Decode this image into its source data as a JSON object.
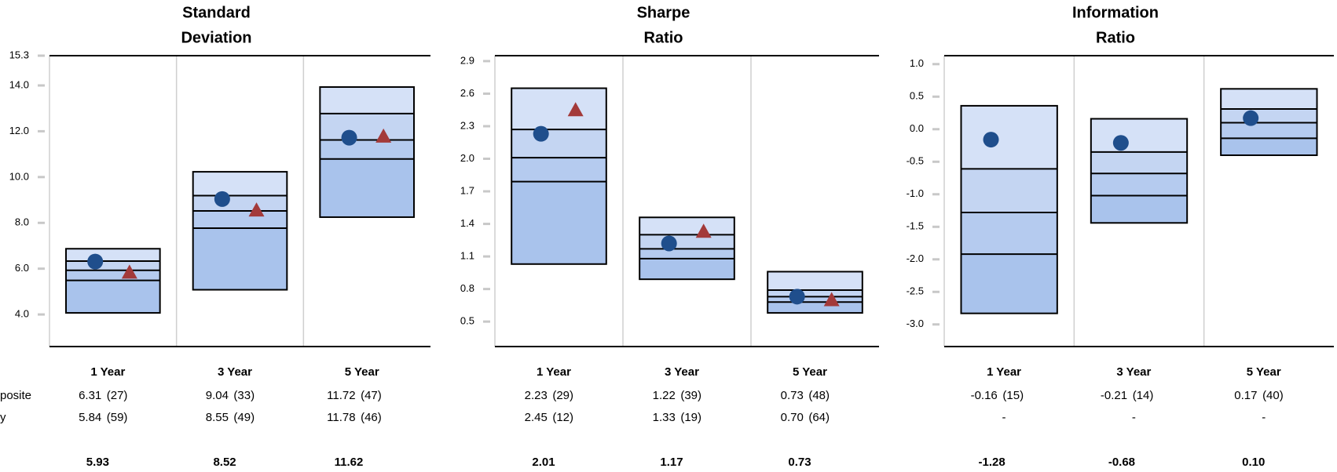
{
  "row_labels": [
    "posite",
    "y"
  ],
  "band_colors": [
    "#d5e1f7",
    "#c4d5f2",
    "#b5cbef",
    "#a9c3ec"
  ],
  "chart_data": [
    {
      "type": "range",
      "title": [
        "Standard",
        "Deviation"
      ],
      "categories": [
        "1 Year",
        "3 Year",
        "5 Year"
      ],
      "ylim": [
        2.6,
        15.3
      ],
      "yticks": [
        {
          "value": 4,
          "label": "4.0"
        },
        {
          "value": 6,
          "label": "6.0"
        },
        {
          "value": 8,
          "label": "8.0"
        },
        {
          "value": 10,
          "label": "10.0"
        },
        {
          "value": 12,
          "label": "12.0"
        },
        {
          "value": 14,
          "label": "14.0"
        },
        15.3
      ],
      "percentiles": [
        [
          4.07,
          5.49,
          5.93,
          6.33,
          6.87
        ],
        [
          5.08,
          7.77,
          8.52,
          9.19,
          10.23
        ],
        [
          8.25,
          10.79,
          11.62,
          12.77,
          13.93
        ]
      ],
      "median_labels": [
        "5.93",
        "8.52",
        "11.62"
      ],
      "series": [
        {
          "marker": "circle",
          "color": "#1f4e8c",
          "values": [
            6.31,
            9.04,
            11.72
          ],
          "value_labels": [
            "6.31",
            "9.04",
            "11.72"
          ],
          "ranks": [
            "(27)",
            "(33)",
            "(47)"
          ]
        },
        {
          "marker": "triangle",
          "color": "#a33a3a",
          "values": [
            5.84,
            8.55,
            11.78
          ],
          "value_labels": [
            "5.84",
            "8.55",
            "11.78"
          ],
          "ranks": [
            "(59)",
            "(49)",
            "(46)"
          ]
        }
      ]
    },
    {
      "type": "range",
      "title": [
        "Sharpe",
        "Ratio"
      ],
      "categories": [
        "1 Year",
        "3 Year",
        "5 Year"
      ],
      "ylim": [
        0.27,
        2.95
      ],
      "yticks": [
        0.5,
        0.8,
        1.1,
        1.4,
        1.7,
        {
          "value": 2,
          "label": "2.0"
        },
        2.3,
        2.6,
        2.9
      ],
      "percentiles": [
        [
          1.03,
          1.79,
          2.01,
          2.27,
          2.65
        ],
        [
          0.89,
          1.08,
          1.17,
          1.3,
          1.46
        ],
        [
          0.58,
          0.68,
          0.73,
          0.79,
          0.96
        ]
      ],
      "median_labels": [
        "2.01",
        "1.17",
        "0.73"
      ],
      "series": [
        {
          "marker": "circle",
          "color": "#1f4e8c",
          "values": [
            2.23,
            1.22,
            0.73
          ],
          "value_labels": [
            "2.23",
            "1.22",
            "0.73"
          ],
          "ranks": [
            "(29)",
            "(39)",
            "(48)"
          ]
        },
        {
          "marker": "triangle",
          "color": "#a33a3a",
          "values": [
            2.45,
            1.33,
            0.7
          ],
          "value_labels": [
            "2.45",
            "1.33",
            "0.70"
          ],
          "ranks": [
            "(12)",
            "(19)",
            "(64)"
          ]
        }
      ]
    },
    {
      "type": "range",
      "title": [
        "Information",
        "Ratio"
      ],
      "categories": [
        "1 Year",
        "3 Year",
        "5 Year"
      ],
      "ylim": [
        -3.34,
        1.13
      ],
      "yticks": [
        {
          "value": -3,
          "label": "-3.0"
        },
        -2.5,
        {
          "value": -2,
          "label": "-2.0"
        },
        -1.5,
        {
          "value": -1,
          "label": "-1.0"
        },
        -0.5,
        {
          "value": 0,
          "label": "0.0"
        },
        0.5,
        {
          "value": 1,
          "label": "1.0"
        }
      ],
      "percentiles": [
        [
          -2.83,
          -1.92,
          -1.28,
          -0.61,
          0.36
        ],
        [
          -1.44,
          -1.02,
          -0.68,
          -0.35,
          0.16
        ],
        [
          -0.4,
          -0.14,
          0.1,
          0.31,
          0.62
        ]
      ],
      "median_labels": [
        "-1.28",
        "-0.68",
        "0.10"
      ],
      "series": [
        {
          "marker": "circle",
          "color": "#1f4e8c",
          "values": [
            -0.16,
            -0.21,
            0.17
          ],
          "value_labels": [
            "-0.16",
            "-0.21",
            "0.17"
          ],
          "ranks": [
            "(15)",
            "(14)",
            "(40)"
          ]
        },
        {
          "marker": "triangle",
          "color": "#a33a3a",
          "values": [
            null,
            null,
            null
          ],
          "value_labels": [
            "-",
            "-",
            "-"
          ]
        }
      ]
    }
  ]
}
